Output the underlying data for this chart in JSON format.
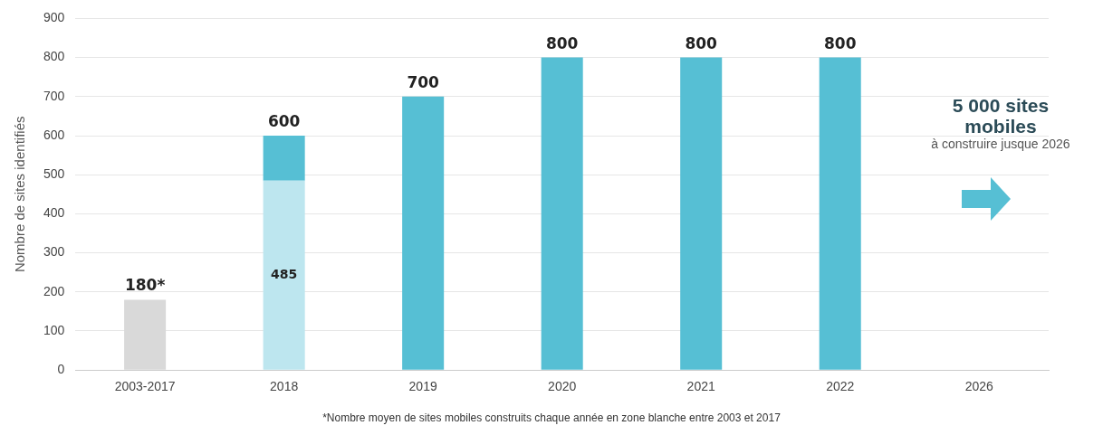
{
  "chart_data": {
    "type": "bar",
    "stacked": true,
    "ylabel": "Nombre de sites identifiés",
    "categories": [
      "2003-2017",
      "2018",
      "2019",
      "2020",
      "2021",
      "2022",
      "2026"
    ],
    "series": [
      {
        "colors": [
          "#d9d9d9",
          "#bde6ef",
          null,
          null,
          null,
          null,
          null
        ],
        "values": [
          180,
          485,
          null,
          null,
          null,
          null,
          null
        ],
        "value_labels": [
          null,
          "485",
          null,
          null,
          null,
          null,
          null
        ]
      },
      {
        "color": "#56bfd4",
        "values": [
          null,
          115,
          700,
          800,
          800,
          800,
          null
        ]
      }
    ],
    "totals": [
      "180*",
      "600",
      "700",
      "800",
      "800",
      "800",
      null
    ],
    "ylim": [
      0,
      900
    ],
    "yticks": [
      0,
      100,
      200,
      300,
      400,
      500,
      600,
      700,
      800,
      900
    ],
    "grid": "y",
    "legend": false,
    "annotations": [
      "5 000 sites mobiles",
      "à construire jusque 2026",
      "*Nombre moyen de sites mobiles construits chaque année en zone blanche entre 2003 et 2017"
    ]
  }
}
